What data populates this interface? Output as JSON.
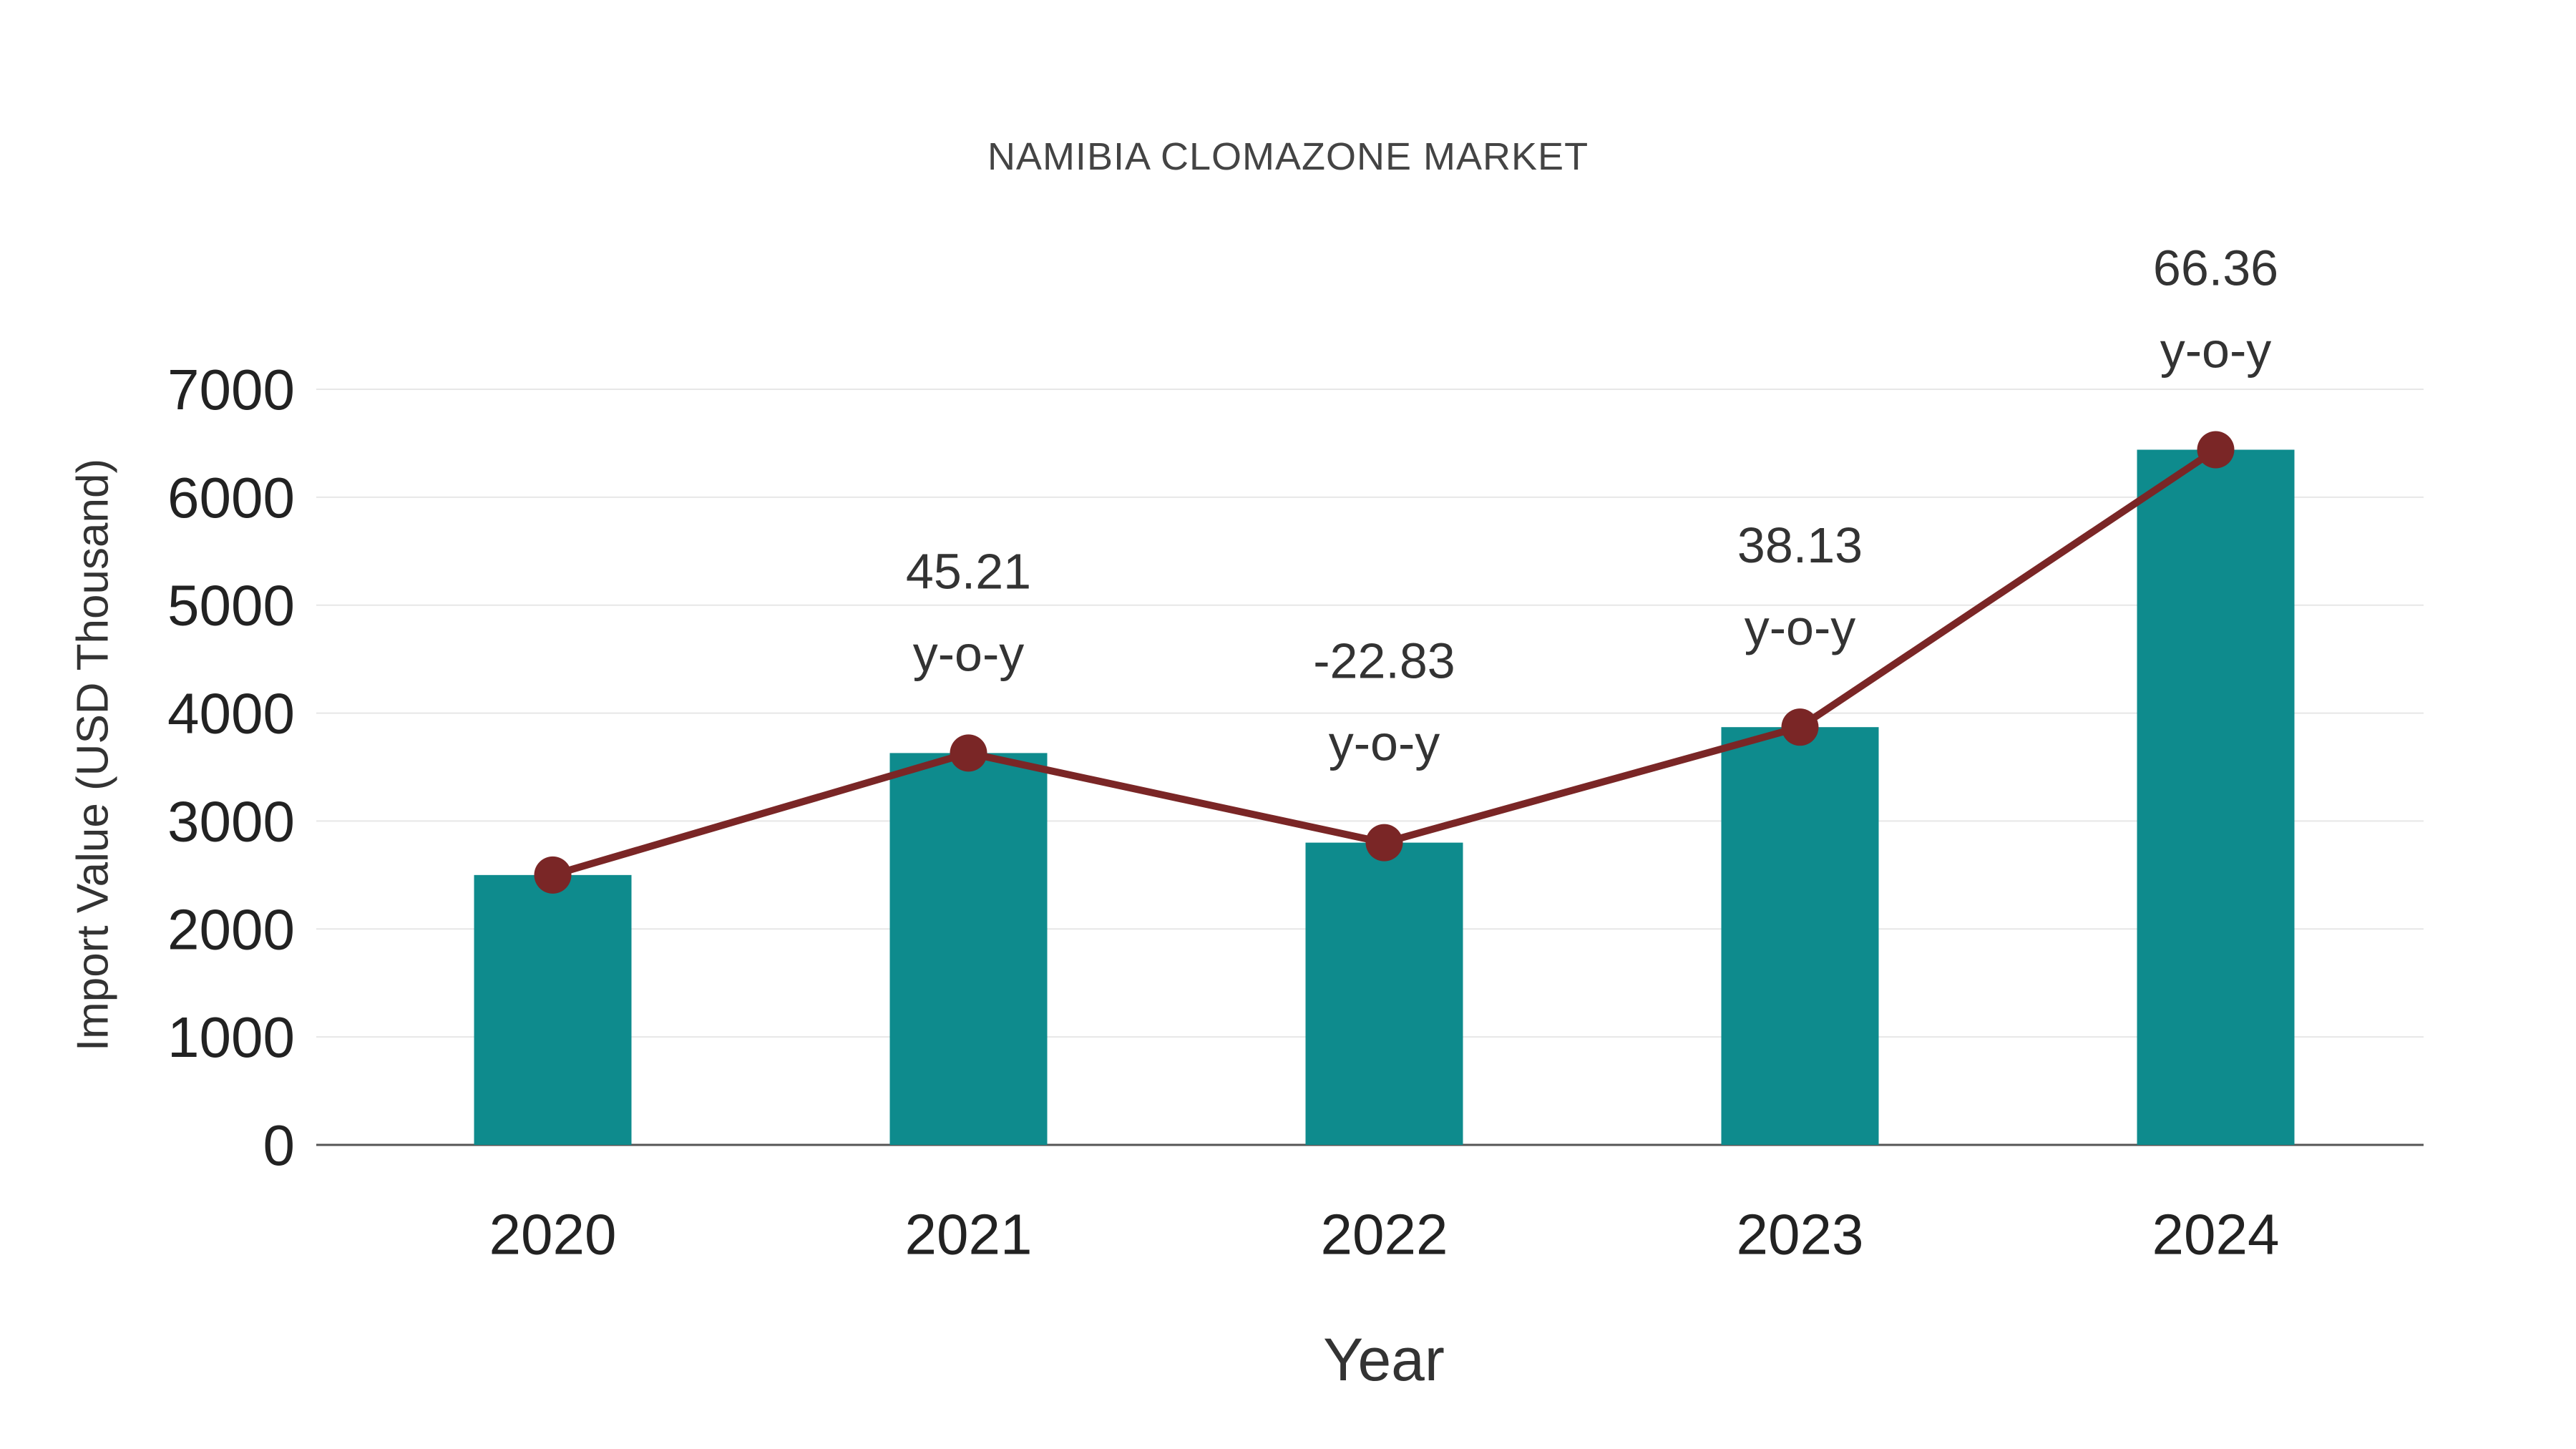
{
  "chart_data": {
    "type": "bar",
    "title": "NAMIBIA CLOMAZONE MARKET",
    "xlabel": "Year",
    "ylabel": "Import Value (USD Thousand)",
    "categories": [
      "2020",
      "2021",
      "2022",
      "2023",
      "2024"
    ],
    "series": [
      {
        "name": "Import Value (bars)",
        "type": "bar",
        "color": "#0e8b8d",
        "values": [
          2500,
          3630,
          2800,
          3870,
          6440
        ]
      },
      {
        "name": "Trend (line with markers)",
        "type": "line",
        "color": "#7a2626",
        "values": [
          2500,
          3630,
          2800,
          3870,
          6440
        ]
      }
    ],
    "annotations": [
      {
        "category": "2021",
        "value": "45.21",
        "suffix": "y-o-y"
      },
      {
        "category": "2022",
        "value": "-22.83",
        "suffix": "y-o-y"
      },
      {
        "category": "2023",
        "value": "38.13",
        "suffix": "y-o-y"
      },
      {
        "category": "2024",
        "value": "66.36",
        "suffix": "y-o-y"
      }
    ],
    "ylim": [
      0,
      7000
    ],
    "yticks": [
      0,
      1000,
      2000,
      3000,
      4000,
      5000,
      6000,
      7000
    ],
    "grid": true,
    "legend": false,
    "colors": {
      "bar": "#0e8b8d",
      "line": "#7a2626",
      "marker": "#7a2626",
      "gridline": "#e7e7e7",
      "axis": "#555555"
    }
  }
}
